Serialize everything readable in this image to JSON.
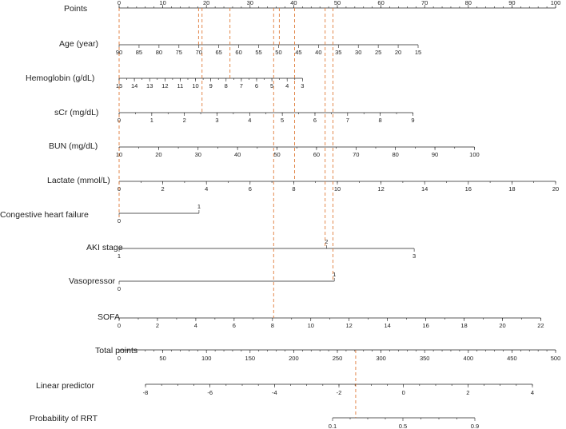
{
  "chart_data": {
    "type": "nomogram",
    "points_scale": {
      "name": "Points",
      "min": 0,
      "max": 100,
      "labels": [
        0,
        10,
        20,
        30,
        40,
        50,
        60,
        70,
        80,
        90,
        100
      ]
    },
    "variables": [
      {
        "name": "Age (year)",
        "labels": [
          "90",
          "85",
          "80",
          "75",
          "70",
          "65",
          "60",
          "55",
          "50",
          "45",
          "40",
          "35",
          "30",
          "25",
          "20",
          "15"
        ],
        "points": [
          0,
          6.7,
          13.3,
          20,
          26.7,
          33.3,
          40,
          46.7,
          53.3,
          60,
          66.7,
          73.3,
          80,
          86.7,
          93.3,
          100
        ],
        "scale_points": [
          0,
          68.5
        ],
        "labels_below": true
      },
      {
        "name": "Hemoglobin (g/dL)",
        "labels": [
          "15",
          "14",
          "13",
          "12",
          "11",
          "10",
          "9",
          "8",
          "7",
          "6",
          "5",
          "4",
          "3"
        ],
        "points": [
          0,
          41.6,
          83.2
        ],
        "scale_points": [
          0,
          42
        ],
        "minor": 24,
        "labels_below": true
      },
      {
        "name": "sCr (mg/dL)",
        "labels": [
          "0",
          "1",
          "2",
          "3",
          "4",
          "5",
          "6",
          "7",
          "8",
          "9"
        ],
        "scale_points": [
          0,
          67.3
        ],
        "minor": 18,
        "labels_below": true
      },
      {
        "name": "BUN (mg/dL)",
        "labels": [
          "10",
          "20",
          "30",
          "40",
          "50",
          "60",
          "70",
          "80",
          "90",
          "100"
        ],
        "scale_points": [
          0,
          81.4
        ],
        "minor": 18,
        "labels_below": true
      },
      {
        "name": "Lactate (mmol/L)",
        "labels": [
          "0",
          "2",
          "4",
          "6",
          "8",
          "10",
          "12",
          "14",
          "16",
          "18",
          "20"
        ],
        "scale_points": [
          0,
          100
        ],
        "minor": 20,
        "labels_below": true
      },
      {
        "name": "Congestive heart failure",
        "labels": [
          "0",
          "1"
        ],
        "scale_points": [
          0,
          18.3
        ],
        "split": true
      },
      {
        "name": "AKI stage",
        "labels": [
          "1",
          "2",
          "3"
        ],
        "scale_points": [
          0,
          47.5,
          67.6
        ],
        "split_mid": true
      },
      {
        "name": "Vasopressor",
        "labels": [
          "0",
          "1"
        ],
        "scale_points": [
          0,
          49.3
        ],
        "split": true
      },
      {
        "name": "SOFA",
        "labels": [
          "0",
          "2",
          "4",
          "6",
          "8",
          "10",
          "12",
          "14",
          "16",
          "18",
          "20",
          "22"
        ],
        "scale_points": [
          0,
          96.6
        ],
        "minor": 22,
        "labels_below": true
      }
    ],
    "total_points": {
      "name": "Total points",
      "labels": [
        0,
        50,
        100,
        150,
        200,
        250,
        300,
        350,
        400,
        450,
        500
      ],
      "min": 0,
      "max": 500
    },
    "linear_predictor": {
      "name": "Linear predictor",
      "labels": [
        "-8",
        "-6",
        "-4",
        "-2",
        "0",
        "2",
        "4"
      ],
      "min": -8,
      "max": 4
    },
    "probability": {
      "name": "Probability of RRT",
      "labels": [
        "0.1",
        "0.5",
        "0.9"
      ]
    },
    "guide_lines": {
      "at_points": [
        0,
        18.2,
        19.0,
        25.4,
        35.4,
        36.7,
        40.2,
        47.2,
        49.0
      ],
      "total_points_value": 271
    }
  }
}
